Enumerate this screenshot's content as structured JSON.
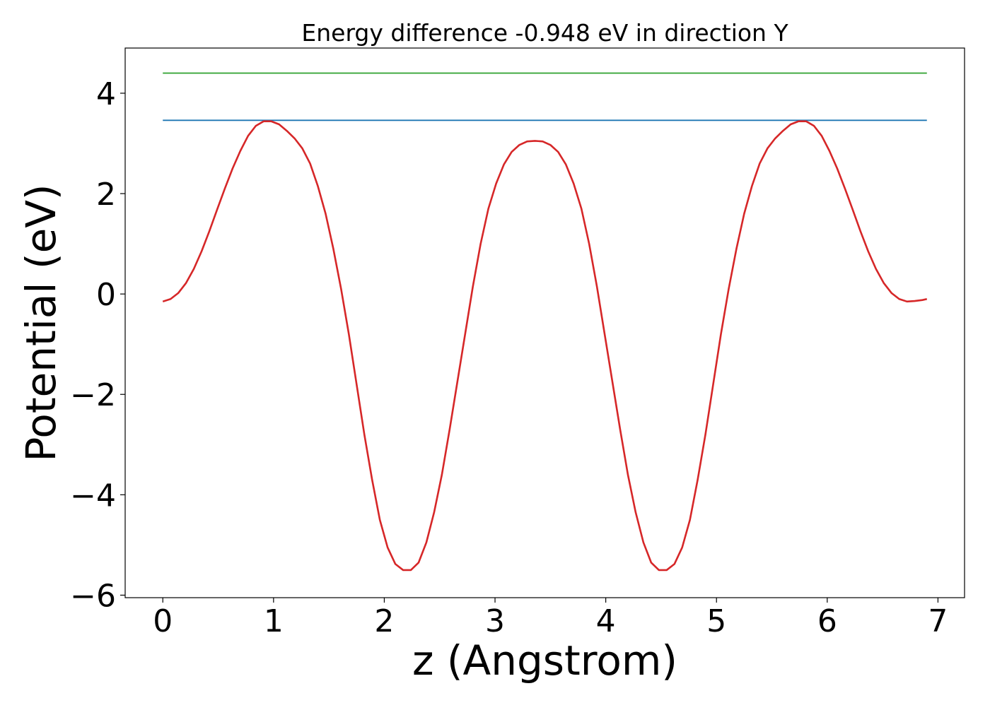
{
  "chart_data": {
    "type": "line",
    "title": "Energy difference -0.948 eV in direction Y",
    "xlabel": "z (Angstrom)",
    "ylabel": "Potential (eV)",
    "xlim": [
      -0.34,
      7.24
    ],
    "ylim": [
      -6.05,
      4.9
    ],
    "x_ticks": [
      0,
      1,
      2,
      3,
      4,
      5,
      6,
      7
    ],
    "x_tick_labels": [
      "0",
      "1",
      "2",
      "3",
      "4",
      "5",
      "6",
      "7"
    ],
    "y_ticks": [
      -6,
      -4,
      -2,
      0,
      2,
      4
    ],
    "y_tick_labels": [
      "−6",
      "−4",
      "−2",
      "0",
      "2",
      "4"
    ],
    "grid": false,
    "legend": "none",
    "series": [
      {
        "color": "#2ca02c",
        "x": [
          0,
          6.9
        ],
        "y": [
          4.4,
          4.4
        ]
      },
      {
        "color": "#1f77b4",
        "x": [
          0,
          6.9
        ],
        "y": [
          3.46,
          3.46
        ]
      },
      {
        "color": "#d62728",
        "x": [
          0.0,
          0.07,
          0.14,
          0.21,
          0.28,
          0.35,
          0.42,
          0.49,
          0.56,
          0.63,
          0.7,
          0.77,
          0.84,
          0.91,
          0.98,
          1.05,
          1.12,
          1.19,
          1.26,
          1.33,
          1.4,
          1.47,
          1.54,
          1.61,
          1.68,
          1.75,
          1.82,
          1.89,
          1.96,
          2.03,
          2.1,
          2.17,
          2.24,
          2.31,
          2.38,
          2.45,
          2.52,
          2.59,
          2.66,
          2.73,
          2.8,
          2.87,
          2.94,
          3.01,
          3.08,
          3.15,
          3.22,
          3.29,
          3.36,
          3.43,
          3.5,
          3.57,
          3.64,
          3.71,
          3.78,
          3.85,
          3.92,
          3.99,
          4.06,
          4.13,
          4.2,
          4.27,
          4.34,
          4.41,
          4.48,
          4.55,
          4.62,
          4.69,
          4.76,
          4.83,
          4.9,
          4.97,
          5.04,
          5.11,
          5.18,
          5.25,
          5.32,
          5.39,
          5.46,
          5.53,
          5.6,
          5.67,
          5.74,
          5.81,
          5.88,
          5.95,
          6.02,
          6.09,
          6.16,
          6.23,
          6.3,
          6.37,
          6.44,
          6.51,
          6.58,
          6.65,
          6.72,
          6.79,
          6.86,
          6.9
        ],
        "y": [
          -0.15,
          -0.1,
          0.02,
          0.22,
          0.5,
          0.85,
          1.25,
          1.68,
          2.1,
          2.5,
          2.85,
          3.15,
          3.35,
          3.44,
          3.44,
          3.38,
          3.25,
          3.1,
          2.9,
          2.6,
          2.15,
          1.6,
          0.9,
          0.1,
          -0.8,
          -1.8,
          -2.8,
          -3.7,
          -4.5,
          -5.05,
          -5.38,
          -5.5,
          -5.5,
          -5.35,
          -4.95,
          -4.35,
          -3.6,
          -2.7,
          -1.75,
          -0.8,
          0.15,
          1.0,
          1.7,
          2.2,
          2.58,
          2.83,
          2.97,
          3.04,
          3.05,
          3.04,
          2.97,
          2.83,
          2.58,
          2.2,
          1.7,
          1.0,
          0.15,
          -0.8,
          -1.75,
          -2.7,
          -3.6,
          -4.35,
          -4.95,
          -5.35,
          -5.5,
          -5.5,
          -5.38,
          -5.05,
          -4.5,
          -3.7,
          -2.8,
          -1.8,
          -0.8,
          0.1,
          0.9,
          1.6,
          2.15,
          2.6,
          2.9,
          3.1,
          3.25,
          3.38,
          3.44,
          3.44,
          3.35,
          3.15,
          2.85,
          2.5,
          2.1,
          1.68,
          1.25,
          0.85,
          0.5,
          0.22,
          0.02,
          -0.1,
          -0.15,
          -0.14,
          -0.12,
          -0.1
        ]
      }
    ]
  }
}
